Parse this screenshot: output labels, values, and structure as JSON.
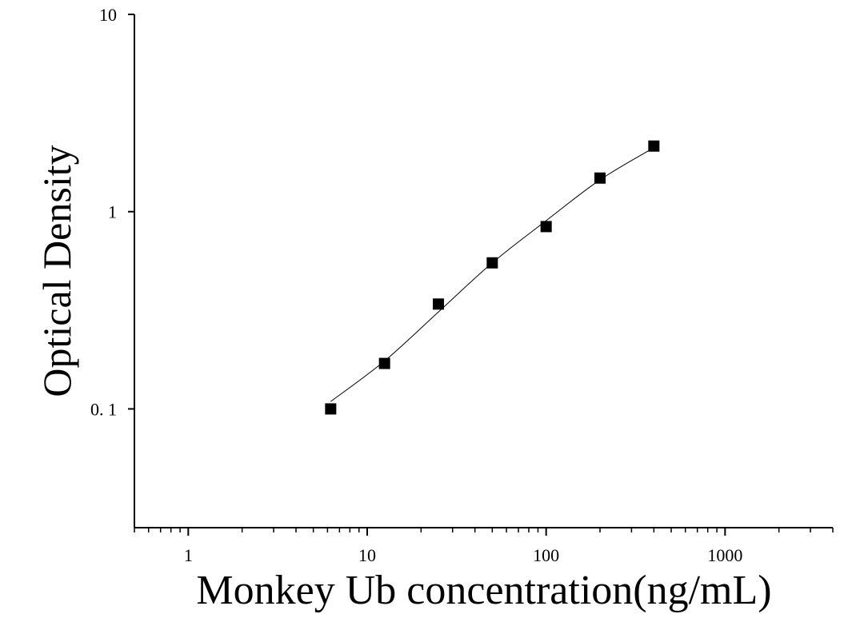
{
  "chart_data": {
    "type": "scatter",
    "xlabel": "Monkey Ub concentration(ng/mL)",
    "ylabel": "Optical Density",
    "x": [
      6.25,
      12.5,
      25,
      50,
      100,
      200,
      400
    ],
    "values": [
      0.1,
      0.17,
      0.34,
      0.55,
      0.84,
      1.48,
      2.15
    ],
    "color": "#000000",
    "fit": {
      "x": [
        6.25,
        12.5,
        25,
        50,
        100,
        200,
        400
      ],
      "values": [
        0.109,
        0.175,
        0.31,
        0.55,
        0.9,
        1.45,
        2.11
      ]
    },
    "xscale": "log",
    "yscale": "log",
    "xlim": [
      0.5,
      4000
    ],
    "ylim": [
      0.025,
      10
    ],
    "xticks": [
      1,
      10,
      100,
      1000
    ],
    "yticks": [
      {
        "value": 0.1,
        "label": "0. 1"
      },
      1,
      10
    ],
    "xminor": true
  }
}
